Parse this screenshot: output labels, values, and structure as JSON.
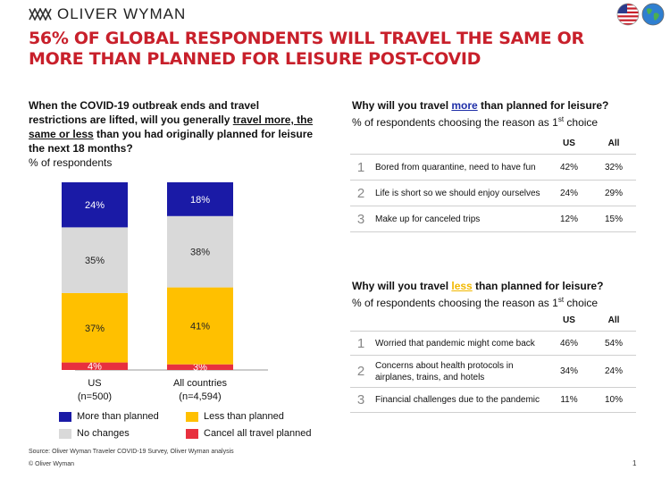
{
  "brand": {
    "name": "OLIVER WYMAN",
    "logo_icon": "oliver-wyman-logo-icon"
  },
  "icons": {
    "flag": "us-flag-icon",
    "globe": "globe-icon"
  },
  "title": "56% OF GLOBAL RESPONDENTS WILL TRAVEL THE SAME OR MORE THAN PLANNED FOR LEISURE POST-COVID",
  "left_question": {
    "part1": "When the COVID-19 outbreak ends and travel restrictions are lifted, will you generally ",
    "underlined": "travel more, the same or less",
    "part2": " than you had originally planned for leisure the next 18 months?",
    "unit": "% of respondents"
  },
  "chart_data": {
    "type": "bar",
    "stacked": true,
    "categories": [
      "US\n(n=500)",
      "All countries\n(n=4,594)"
    ],
    "category_lines": [
      [
        "US",
        "(n=500)"
      ],
      [
        "All countries",
        "(n=4,594)"
      ]
    ],
    "series": [
      {
        "name": "Cancel all travel planned",
        "color": "#e8303e",
        "values": [
          4,
          3
        ],
        "labels": [
          "4%",
          "3%"
        ]
      },
      {
        "name": "Less than planned",
        "color": "#ffc000",
        "values": [
          37,
          41
        ],
        "labels": [
          "37%",
          "41%"
        ]
      },
      {
        "name": "No changes",
        "color": "#d9d9d9",
        "values": [
          35,
          38
        ],
        "labels": [
          "35%",
          "38%"
        ]
      },
      {
        "name": "More than planned",
        "color": "#1a1aa6",
        "values": [
          24,
          18
        ],
        "labels": [
          "24%",
          "18%"
        ]
      }
    ],
    "ylim": [
      0,
      100
    ],
    "grid": false,
    "legend_position": "bottom"
  },
  "legend": [
    {
      "label": "More than planned",
      "color": "#1a1aa6"
    },
    {
      "label": "Less than planned",
      "color": "#ffc000"
    },
    {
      "label": "No changes",
      "color": "#d9d9d9"
    },
    {
      "label": "Cancel all travel planned",
      "color": "#e8303e"
    }
  ],
  "more_section": {
    "q_part1": "Why will you travel ",
    "q_keyword": "more",
    "q_part2": " than planned for leisure?",
    "sub_part1": "% of respondents choosing the reason as 1",
    "sub_sup": "st",
    "sub_part2": " choice",
    "col_us": "US",
    "col_all": "All",
    "rows": [
      {
        "rank": "1",
        "reason": "Bored from quarantine, need to have fun",
        "us": "42%",
        "all": "32%"
      },
      {
        "rank": "2",
        "reason": "Life is short so we should enjoy ourselves",
        "us": "24%",
        "all": "29%"
      },
      {
        "rank": "3",
        "reason": "Make up for canceled trips",
        "us": "12%",
        "all": "15%"
      }
    ]
  },
  "less_section": {
    "q_part1": "Why will you travel ",
    "q_keyword": "less",
    "q_part2": " than planned for leisure?",
    "sub_part1": "% of respondents choosing the reason as 1",
    "sub_sup": "st",
    "sub_part2": " choice",
    "col_us": "US",
    "col_all": "All",
    "rows": [
      {
        "rank": "1",
        "reason": "Worried that pandemic might come back",
        "us": "46%",
        "all": "54%"
      },
      {
        "rank": "2",
        "reason": "Concerns about health protocols in airplanes, trains, and hotels",
        "us": "34%",
        "all": "24%"
      },
      {
        "rank": "3",
        "reason": "Financial challenges due to the pandemic",
        "us": "11%",
        "all": "10%"
      }
    ]
  },
  "footer": {
    "source": "Source: Oliver Wyman Traveler COVID-19 Survey, Oliver Wyman analysis",
    "copyright": "© Oliver Wyman",
    "page": "1"
  }
}
